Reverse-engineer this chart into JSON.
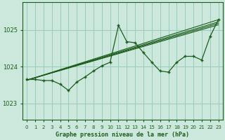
{
  "title": "Graphe pression niveau de la mer (hPa)",
  "bg_color": "#cce8dd",
  "grid_color": "#99ccbb",
  "line_color": "#1a5c1a",
  "xlim": [
    -0.5,
    23.5
  ],
  "ylim": [
    1022.55,
    1025.75
  ],
  "yticks": [
    1023,
    1024,
    1025
  ],
  "xtick_labels": [
    "0",
    "1",
    "2",
    "3",
    "4",
    "5",
    "6",
    "7",
    "8",
    "9",
    "10",
    "11",
    "12",
    "13",
    "14",
    "15",
    "16",
    "17",
    "18",
    "19",
    "20",
    "21",
    "22",
    "23"
  ],
  "main_series": [
    1023.65,
    1023.65,
    1023.62,
    1023.62,
    1023.52,
    1023.35,
    1023.58,
    1023.72,
    1023.88,
    1024.02,
    1024.12,
    1025.12,
    1024.68,
    1024.65,
    1024.38,
    1024.12,
    1023.88,
    1023.85,
    1024.12,
    1024.28,
    1024.28,
    1024.18,
    1024.82,
    1025.28
  ],
  "trend_lines": [
    {
      "x": [
        0,
        23
      ],
      "y": [
        1023.63,
        1025.28
      ]
    },
    {
      "x": [
        0,
        23
      ],
      "y": [
        1023.63,
        1025.22
      ]
    },
    {
      "x": [
        0,
        23
      ],
      "y": [
        1023.63,
        1025.18
      ]
    },
    {
      "x": [
        0,
        23
      ],
      "y": [
        1023.63,
        1025.14
      ]
    }
  ],
  "title_fontsize": 6.0,
  "ytick_fontsize": 6.0,
  "xtick_fontsize": 5.0
}
